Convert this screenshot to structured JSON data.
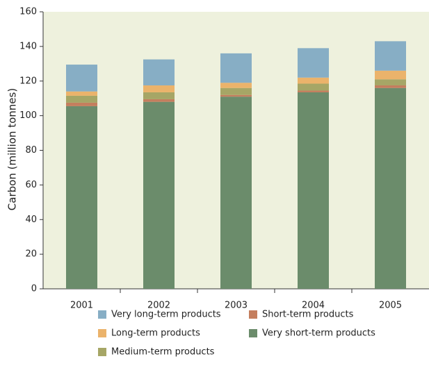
{
  "chart_data": {
    "type": "stacked-bar",
    "y_label": "Carbon (million tonnes)",
    "categories": [
      "2001",
      "2002",
      "2003",
      "2004",
      "2005"
    ],
    "series": [
      {
        "name": "Very short-term products",
        "color": "#6b8c6b",
        "values": [
          105.5,
          108,
          111,
          113.5,
          116
        ]
      },
      {
        "name": "Short-term products",
        "color": "#c47e5e",
        "values": [
          2,
          1.5,
          1,
          1,
          1.5
        ]
      },
      {
        "name": "Medium-term products",
        "color": "#a6a666",
        "values": [
          4,
          4,
          4,
          4,
          3.5
        ]
      },
      {
        "name": "Long-term products",
        "color": "#ebb36b",
        "values": [
          2.5,
          4,
          3,
          3.5,
          5
        ]
      },
      {
        "name": "Very long-term products",
        "color": "#87aec5",
        "values": [
          15.5,
          15,
          17,
          17,
          17
        ]
      }
    ],
    "ylim": [
      0,
      160
    ],
    "yticks": [
      0,
      20,
      40,
      60,
      80,
      100,
      120,
      140,
      160
    ]
  }
}
